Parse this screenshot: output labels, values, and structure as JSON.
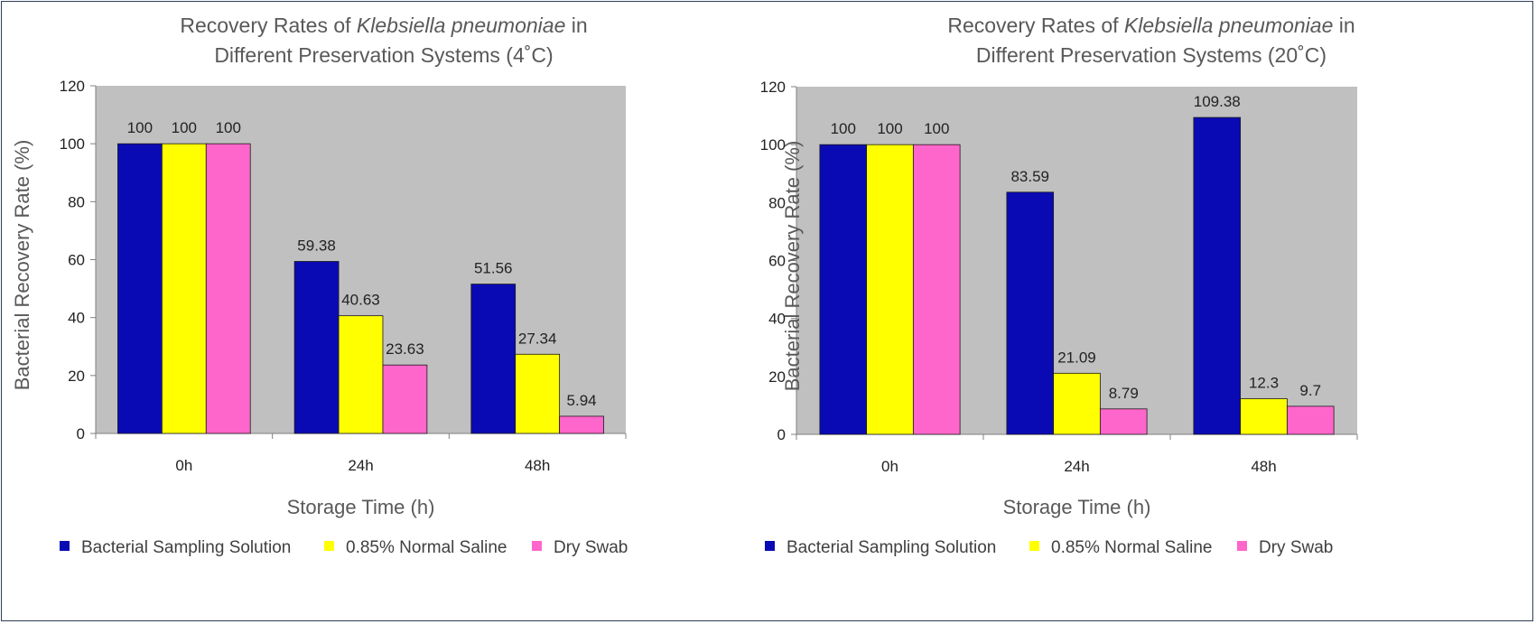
{
  "chart_data": [
    {
      "type": "bar",
      "title_prefix": "Recovery Rates of ",
      "title_species": "Klebsiella pneumoniae",
      "title_suffix": " in",
      "title_line2": "Different Preservation Systems (4˚C)",
      "xlabel": "Storage Time (h)",
      "ylabel": "Bacterial Recovery Rate (%)",
      "categories": [
        "0h",
        "24h",
        "48h"
      ],
      "ylim": [
        0,
        120
      ],
      "yticks": [
        0,
        20,
        40,
        60,
        80,
        100,
        120
      ],
      "plot_background": "#c0c0c0",
      "grid": false,
      "legend_position": "bottom",
      "series": [
        {
          "name": "Bacterial Sampling Solution",
          "color": "#0a0ab4",
          "values": [
            100,
            59.38,
            51.56
          ]
        },
        {
          "name": "0.85% Normal Saline",
          "color": "#ffff00",
          "values": [
            100,
            40.63,
            27.34
          ]
        },
        {
          "name": "Dry Swab",
          "color": "#ff66cc",
          "values": [
            100,
            23.63,
            5.94
          ]
        }
      ]
    },
    {
      "type": "bar",
      "title_prefix": "Recovery Rates of ",
      "title_species": "Klebsiella pneumoniae",
      "title_suffix": " in",
      "title_line2": "Different Preservation Systems (20˚C)",
      "xlabel": "Storage Time (h)",
      "ylabel": "Bacterial Recovery Rate (%)",
      "categories": [
        "0h",
        "24h",
        "48h"
      ],
      "ylim": [
        0,
        120
      ],
      "yticks": [
        0,
        20,
        40,
        60,
        80,
        100,
        120
      ],
      "plot_background": "#c0c0c0",
      "grid": false,
      "legend_position": "bottom",
      "series": [
        {
          "name": "Bacterial Sampling Solution",
          "color": "#0a0ab4",
          "values": [
            100,
            83.59,
            109.38
          ]
        },
        {
          "name": "0.85% Normal Saline",
          "color": "#ffff00",
          "values": [
            100,
            21.09,
            12.3
          ]
        },
        {
          "name": "Dry Swab",
          "color": "#ff66cc",
          "values": [
            100,
            8.79,
            9.7
          ]
        }
      ]
    }
  ]
}
